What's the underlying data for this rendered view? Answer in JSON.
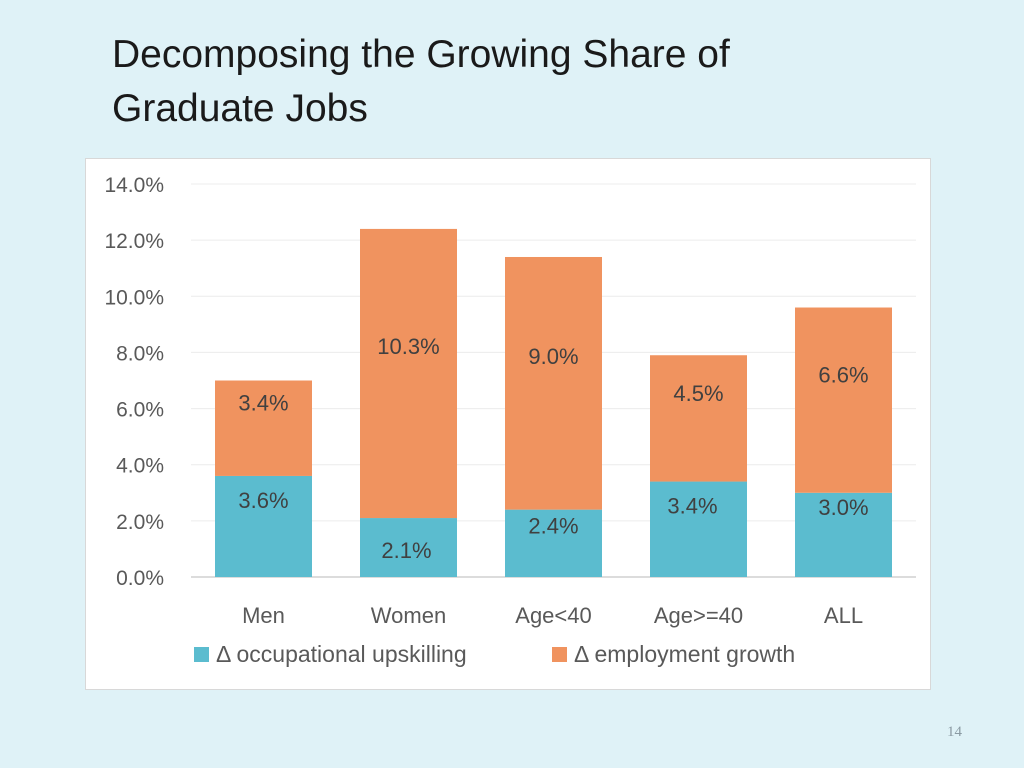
{
  "slide": {
    "title_line1": "Decomposing the Growing Share of",
    "title_line2": "Graduate Jobs",
    "page_number": "14"
  },
  "chart_data": {
    "type": "bar",
    "stacked": true,
    "categories": [
      "Men",
      "Women",
      "Age<40",
      "Age>=40",
      "ALL"
    ],
    "series": [
      {
        "name": "Δ occupational upskilling",
        "color": "#5bbccf",
        "values": [
          3.6,
          2.1,
          2.4,
          3.4,
          3.0
        ],
        "labels": [
          "3.6%",
          "2.1%",
          "2.4%",
          "3.4%",
          "3.0%"
        ]
      },
      {
        "name": "Δ employment growth",
        "color": "#f0935f",
        "values": [
          3.4,
          10.3,
          9.0,
          4.5,
          6.6
        ],
        "labels": [
          "3.4%",
          "10.3%",
          "9.0%",
          "4.5%",
          "6.6%"
        ]
      }
    ],
    "ylim": [
      0,
      14
    ],
    "yticks": [
      "0.0%",
      "2.0%",
      "4.0%",
      "6.0%",
      "8.0%",
      "10.0%",
      "12.0%",
      "14.0%"
    ],
    "grid": true,
    "legend_position": "bottom"
  }
}
